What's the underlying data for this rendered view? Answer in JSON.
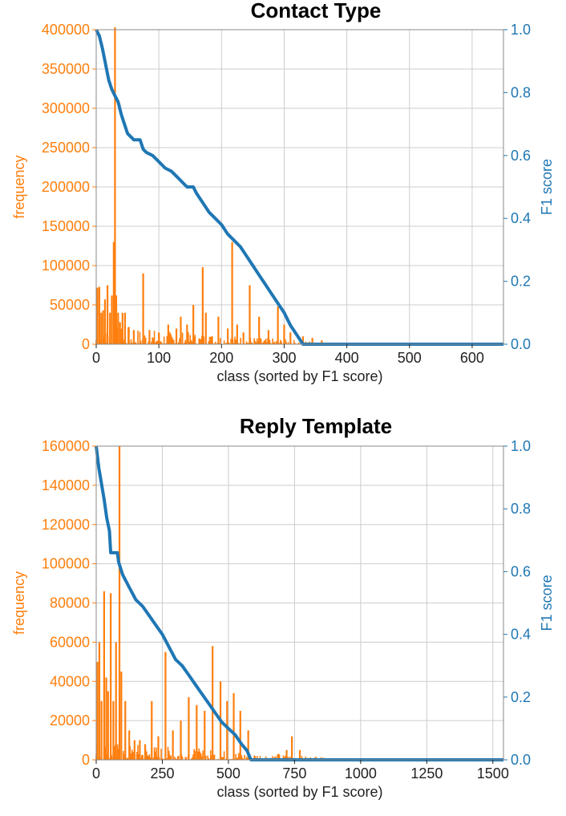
{
  "colors": {
    "frequency": "#ff7f0e",
    "f1": "#1f77b4",
    "grid": "#cccccc",
    "axis": "#222222"
  },
  "chart_data": [
    {
      "type": "bar+line",
      "title": "Contact Type",
      "xlabel": "class (sorted by F1 score)",
      "ylabel": "frequency",
      "y2label": "F1 score",
      "xlim": [
        0,
        650
      ],
      "ylim": [
        0,
        400000
      ],
      "y2lim": [
        0,
        1
      ],
      "xticks": [
        "0",
        "100",
        "200",
        "300",
        "400",
        "500",
        "600"
      ],
      "xtick_values": [
        0,
        100,
        200,
        300,
        400,
        500,
        600
      ],
      "yticks": [
        "0",
        "50000",
        "100000",
        "150000",
        "200000",
        "250000",
        "300000",
        "350000",
        "400000"
      ],
      "ytick_values": [
        0,
        50000,
        100000,
        150000,
        200000,
        250000,
        300000,
        350000,
        400000
      ],
      "y2ticks": [
        "0.0",
        "0.2",
        "0.4",
        "0.6",
        "0.8",
        "1.0"
      ],
      "y2tick_values": [
        0,
        0.2,
        0.4,
        0.6,
        0.8,
        1.0
      ],
      "grid": true,
      "frequency_peaks": [
        {
          "x": 2,
          "y": 72000
        },
        {
          "x": 5,
          "y": 73000
        },
        {
          "x": 8,
          "y": 40000
        },
        {
          "x": 11,
          "y": 43000
        },
        {
          "x": 14,
          "y": 57000
        },
        {
          "x": 18,
          "y": 75000
        },
        {
          "x": 22,
          "y": 40000
        },
        {
          "x": 25,
          "y": 62000
        },
        {
          "x": 28,
          "y": 130000
        },
        {
          "x": 30,
          "y": 403000
        },
        {
          "x": 32,
          "y": 62000
        },
        {
          "x": 35,
          "y": 40000
        },
        {
          "x": 38,
          "y": 28000
        },
        {
          "x": 42,
          "y": 40000
        },
        {
          "x": 46,
          "y": 40000
        },
        {
          "x": 52,
          "y": 22000
        },
        {
          "x": 60,
          "y": 18000
        },
        {
          "x": 75,
          "y": 90000
        },
        {
          "x": 85,
          "y": 18000
        },
        {
          "x": 100,
          "y": 15000
        },
        {
          "x": 115,
          "y": 25000
        },
        {
          "x": 128,
          "y": 20000
        },
        {
          "x": 135,
          "y": 35000
        },
        {
          "x": 145,
          "y": 25000
        },
        {
          "x": 155,
          "y": 50000
        },
        {
          "x": 170,
          "y": 98000
        },
        {
          "x": 175,
          "y": 40000
        },
        {
          "x": 185,
          "y": 10000
        },
        {
          "x": 195,
          "y": 35000
        },
        {
          "x": 210,
          "y": 20000
        },
        {
          "x": 217,
          "y": 130000
        },
        {
          "x": 225,
          "y": 25000
        },
        {
          "x": 235,
          "y": 15000
        },
        {
          "x": 245,
          "y": 75000
        },
        {
          "x": 260,
          "y": 35000
        },
        {
          "x": 275,
          "y": 18000
        },
        {
          "x": 290,
          "y": 48000
        },
        {
          "x": 300,
          "y": 25000
        },
        {
          "x": 310,
          "y": 15000
        },
        {
          "x": 330,
          "y": 10000
        },
        {
          "x": 345,
          "y": 8000
        },
        {
          "x": 360,
          "y": 5000
        }
      ],
      "f1_curve": [
        {
          "x": 0,
          "y": 1.0
        },
        {
          "x": 5,
          "y": 0.98
        },
        {
          "x": 10,
          "y": 0.94
        },
        {
          "x": 15,
          "y": 0.89
        },
        {
          "x": 20,
          "y": 0.84
        },
        {
          "x": 25,
          "y": 0.81
        },
        {
          "x": 30,
          "y": 0.79
        },
        {
          "x": 35,
          "y": 0.77
        },
        {
          "x": 40,
          "y": 0.73
        },
        {
          "x": 45,
          "y": 0.7
        },
        {
          "x": 50,
          "y": 0.67
        },
        {
          "x": 55,
          "y": 0.66
        },
        {
          "x": 60,
          "y": 0.65
        },
        {
          "x": 70,
          "y": 0.65
        },
        {
          "x": 75,
          "y": 0.62
        },
        {
          "x": 80,
          "y": 0.61
        },
        {
          "x": 90,
          "y": 0.6
        },
        {
          "x": 100,
          "y": 0.58
        },
        {
          "x": 110,
          "y": 0.56
        },
        {
          "x": 120,
          "y": 0.55
        },
        {
          "x": 130,
          "y": 0.53
        },
        {
          "x": 140,
          "y": 0.51
        },
        {
          "x": 145,
          "y": 0.5
        },
        {
          "x": 155,
          "y": 0.5
        },
        {
          "x": 160,
          "y": 0.48
        },
        {
          "x": 170,
          "y": 0.45
        },
        {
          "x": 180,
          "y": 0.42
        },
        {
          "x": 190,
          "y": 0.4
        },
        {
          "x": 200,
          "y": 0.38
        },
        {
          "x": 210,
          "y": 0.35
        },
        {
          "x": 220,
          "y": 0.33
        },
        {
          "x": 230,
          "y": 0.31
        },
        {
          "x": 240,
          "y": 0.28
        },
        {
          "x": 250,
          "y": 0.25
        },
        {
          "x": 260,
          "y": 0.22
        },
        {
          "x": 270,
          "y": 0.19
        },
        {
          "x": 280,
          "y": 0.16
        },
        {
          "x": 290,
          "y": 0.13
        },
        {
          "x": 300,
          "y": 0.1
        },
        {
          "x": 310,
          "y": 0.06
        },
        {
          "x": 320,
          "y": 0.03
        },
        {
          "x": 330,
          "y": 0.0
        },
        {
          "x": 650,
          "y": 0.0
        }
      ]
    },
    {
      "type": "bar+line",
      "title": "Reply Template",
      "xlabel": "class (sorted by F1 score)",
      "ylabel": "frequency",
      "y2label": "F1 score",
      "xlim": [
        0,
        1540
      ],
      "ylim": [
        0,
        160000
      ],
      "y2lim": [
        0,
        1
      ],
      "xticks": [
        "0",
        "250",
        "500",
        "750",
        "1000",
        "1250",
        "1500"
      ],
      "xtick_values": [
        0,
        250,
        500,
        750,
        1000,
        1250,
        1500
      ],
      "yticks": [
        "0",
        "20000",
        "40000",
        "60000",
        "80000",
        "100000",
        "120000",
        "140000",
        "160000"
      ],
      "ytick_values": [
        0,
        20000,
        40000,
        60000,
        80000,
        100000,
        120000,
        140000,
        160000
      ],
      "y2ticks": [
        "0.0",
        "0.2",
        "0.4",
        "0.6",
        "0.8",
        "1.0"
      ],
      "y2tick_values": [
        0,
        0.2,
        0.4,
        0.6,
        0.8,
        1.0
      ],
      "grid": true,
      "frequency_peaks": [
        {
          "x": 5,
          "y": 50000
        },
        {
          "x": 12,
          "y": 60000
        },
        {
          "x": 20,
          "y": 30000
        },
        {
          "x": 30,
          "y": 86000
        },
        {
          "x": 38,
          "y": 42000
        },
        {
          "x": 45,
          "y": 35000
        },
        {
          "x": 55,
          "y": 85000
        },
        {
          "x": 65,
          "y": 30000
        },
        {
          "x": 75,
          "y": 60000
        },
        {
          "x": 88,
          "y": 160000
        },
        {
          "x": 95,
          "y": 45000
        },
        {
          "x": 110,
          "y": 30000
        },
        {
          "x": 125,
          "y": 15000
        },
        {
          "x": 145,
          "y": 10000
        },
        {
          "x": 165,
          "y": 10000
        },
        {
          "x": 185,
          "y": 8000
        },
        {
          "x": 210,
          "y": 30000
        },
        {
          "x": 235,
          "y": 12000
        },
        {
          "x": 262,
          "y": 55000
        },
        {
          "x": 290,
          "y": 15000
        },
        {
          "x": 320,
          "y": 20000
        },
        {
          "x": 350,
          "y": 32000
        },
        {
          "x": 380,
          "y": 28000
        },
        {
          "x": 410,
          "y": 25000
        },
        {
          "x": 440,
          "y": 58000
        },
        {
          "x": 470,
          "y": 40000
        },
        {
          "x": 495,
          "y": 30000
        },
        {
          "x": 520,
          "y": 34000
        },
        {
          "x": 545,
          "y": 25000
        },
        {
          "x": 575,
          "y": 15000
        },
        {
          "x": 690,
          "y": 3000
        },
        {
          "x": 720,
          "y": 5000
        },
        {
          "x": 740,
          "y": 12000
        },
        {
          "x": 770,
          "y": 5000
        },
        {
          "x": 830,
          "y": 1500
        },
        {
          "x": 860,
          "y": 1000
        }
      ],
      "f1_curve": [
        {
          "x": 0,
          "y": 1.0
        },
        {
          "x": 10,
          "y": 0.93
        },
        {
          "x": 20,
          "y": 0.88
        },
        {
          "x": 30,
          "y": 0.83
        },
        {
          "x": 40,
          "y": 0.77
        },
        {
          "x": 50,
          "y": 0.73
        },
        {
          "x": 55,
          "y": 0.66
        },
        {
          "x": 60,
          "y": 0.66
        },
        {
          "x": 80,
          "y": 0.66
        },
        {
          "x": 85,
          "y": 0.63
        },
        {
          "x": 100,
          "y": 0.59
        },
        {
          "x": 125,
          "y": 0.55
        },
        {
          "x": 150,
          "y": 0.51
        },
        {
          "x": 175,
          "y": 0.49
        },
        {
          "x": 200,
          "y": 0.46
        },
        {
          "x": 225,
          "y": 0.43
        },
        {
          "x": 250,
          "y": 0.4
        },
        {
          "x": 275,
          "y": 0.36
        },
        {
          "x": 300,
          "y": 0.32
        },
        {
          "x": 325,
          "y": 0.3
        },
        {
          "x": 350,
          "y": 0.27
        },
        {
          "x": 375,
          "y": 0.24
        },
        {
          "x": 400,
          "y": 0.21
        },
        {
          "x": 425,
          "y": 0.18
        },
        {
          "x": 450,
          "y": 0.15
        },
        {
          "x": 475,
          "y": 0.12
        },
        {
          "x": 500,
          "y": 0.1
        },
        {
          "x": 525,
          "y": 0.08
        },
        {
          "x": 550,
          "y": 0.05
        },
        {
          "x": 570,
          "y": 0.03
        },
        {
          "x": 585,
          "y": 0.0
        },
        {
          "x": 1540,
          "y": 0.0
        }
      ]
    }
  ]
}
